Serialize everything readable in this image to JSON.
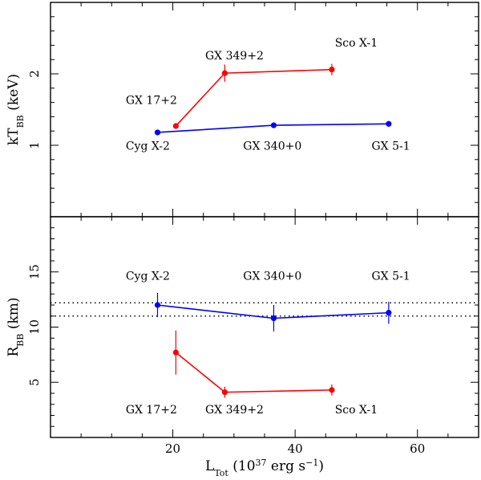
{
  "chart_data": [
    {
      "type": "line",
      "panel": "top",
      "ylabel": "kT",
      "ylabel_sub": "BB",
      "ylabel_unit": " (keV)",
      "xlim": [
        0,
        70
      ],
      "ylim": [
        0,
        3
      ],
      "yticks": [
        1,
        2
      ],
      "xticks": [
        20,
        40,
        60
      ],
      "series": [
        {
          "name": "GX 17+2 / GX 349+2 / Sco X-1",
          "color": "#ff0000",
          "points": [
            {
              "x": 20.5,
              "y": 1.27,
              "err": 0.04
            },
            {
              "x": 28.5,
              "y": 2.01,
              "err": 0.12
            },
            {
              "x": 46.0,
              "y": 2.06,
              "err": 0.08
            }
          ]
        },
        {
          "name": "Cyg X-2 / GX 340+0 / GX 5-1",
          "color": "#0000ff",
          "points": [
            {
              "x": 17.5,
              "y": 1.18,
              "err": 0.02
            },
            {
              "x": 36.5,
              "y": 1.28,
              "err": 0.03
            },
            {
              "x": 55.3,
              "y": 1.3,
              "err": 0.04
            }
          ]
        }
      ],
      "annotations": [
        {
          "text": "GX 17+2",
          "x": 12.3,
          "y": 1.58
        },
        {
          "text": "GX 349+2",
          "x": 25.3,
          "y": 2.2
        },
        {
          "text": "Sco X-1",
          "x": 46.5,
          "y": 2.38
        },
        {
          "text": "Cyg X-2",
          "x": 12.3,
          "y": 0.94
        },
        {
          "text": "GX 340+0",
          "x": 31.5,
          "y": 0.94
        },
        {
          "text": "GX 5-1",
          "x": 52.5,
          "y": 0.94
        }
      ]
    },
    {
      "type": "line",
      "panel": "bottom",
      "ylabel": "R",
      "ylabel_sub": "BB",
      "ylabel_unit": " (km)",
      "xlabel": "L",
      "xlabel_sub": "Tot",
      "xlabel_unit_pre": " (10",
      "xlabel_sup": "37",
      "xlabel_unit_mid": " erg s",
      "xlabel_sup2": "−1",
      "xlabel_unit_post": ")",
      "xlim": [
        0,
        70
      ],
      "ylim": [
        0,
        20
      ],
      "yticks": [
        5,
        10,
        15
      ],
      "xticks": [
        20,
        40,
        60
      ],
      "hlines": [
        11.0,
        12.2
      ],
      "series": [
        {
          "name": "Cyg X-2 / GX 340+0 / GX 5-1",
          "color": "#0000ff",
          "points": [
            {
              "x": 17.5,
              "y": 12.0,
              "err": 1.1
            },
            {
              "x": 36.5,
              "y": 10.8,
              "err": 1.2
            },
            {
              "x": 55.3,
              "y": 11.3,
              "err": 1.0
            }
          ]
        },
        {
          "name": "GX 17+2 / GX 349+2 / Sco X-1",
          "color": "#ff0000",
          "points": [
            {
              "x": 20.5,
              "y": 7.7,
              "err": 2.0
            },
            {
              "x": 28.5,
              "y": 4.1,
              "err": 0.5
            },
            {
              "x": 46.0,
              "y": 4.3,
              "err": 0.5
            }
          ]
        }
      ],
      "annotations": [
        {
          "text": "Cyg X-2",
          "x": 12.3,
          "y": 14.3
        },
        {
          "text": "GX 340+0",
          "x": 31.5,
          "y": 14.3
        },
        {
          "text": "GX 5-1",
          "x": 52.5,
          "y": 14.3
        },
        {
          "text": "GX 17+2",
          "x": 12.3,
          "y": 2.2
        },
        {
          "text": "GX 349+2",
          "x": 25.3,
          "y": 2.2
        },
        {
          "text": "Sco X-1",
          "x": 46.5,
          "y": 2.2
        }
      ]
    }
  ]
}
